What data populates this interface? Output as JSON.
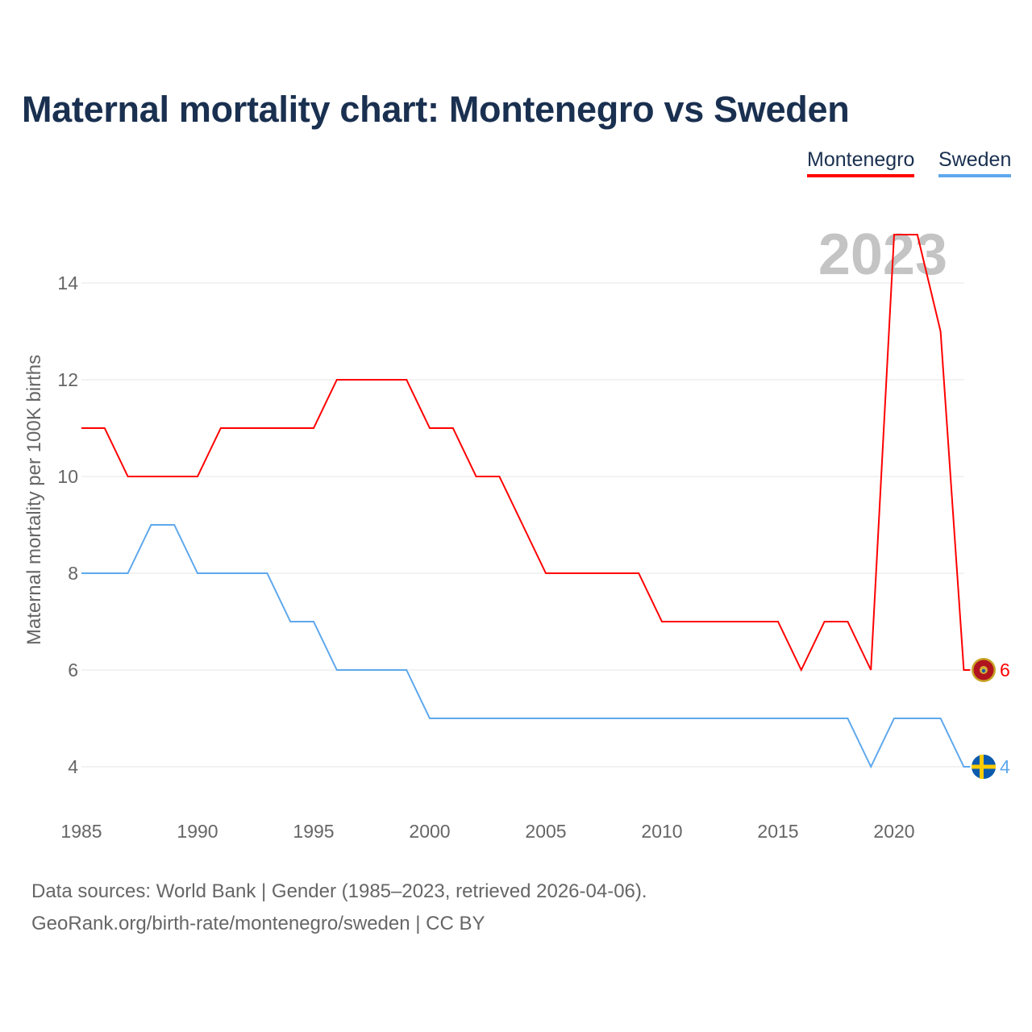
{
  "chart_data": {
    "type": "line",
    "title": "Maternal mortality chart: Montenegro vs Sweden",
    "xlabel": "",
    "ylabel": "Maternal mortality per 100K births",
    "xlim": [
      1985,
      2023
    ],
    "ylim": [
      3,
      15
    ],
    "x_ticks": [
      1985,
      1990,
      1995,
      2000,
      2005,
      2010,
      2015,
      2020
    ],
    "y_ticks": [
      4,
      6,
      8,
      10,
      12,
      14
    ],
    "grid": true,
    "legend_placement": "top-right",
    "year_watermark": "2023",
    "x": [
      1985,
      1986,
      1987,
      1988,
      1989,
      1990,
      1991,
      1992,
      1993,
      1994,
      1995,
      1996,
      1997,
      1998,
      1999,
      2000,
      2001,
      2002,
      2003,
      2004,
      2005,
      2006,
      2007,
      2008,
      2009,
      2010,
      2011,
      2012,
      2013,
      2014,
      2015,
      2016,
      2017,
      2018,
      2019,
      2020,
      2021,
      2022,
      2023
    ],
    "series": [
      {
        "name": "Montenegro",
        "color": "#ff0000",
        "end_label": "6",
        "values": [
          11,
          11,
          10,
          10,
          10,
          10,
          11,
          11,
          11,
          11,
          11,
          12,
          12,
          12,
          12,
          11,
          11,
          10,
          10,
          9,
          8,
          8,
          8,
          8,
          8,
          7,
          7,
          7,
          7,
          7,
          7,
          6,
          7,
          7,
          6,
          15,
          15,
          13,
          6
        ]
      },
      {
        "name": "Sweden",
        "color": "#5ea8ec",
        "end_label": "4",
        "values": [
          8,
          8,
          8,
          9,
          9,
          8,
          8,
          8,
          8,
          7,
          7,
          6,
          6,
          6,
          6,
          5,
          5,
          5,
          5,
          5,
          5,
          5,
          5,
          5,
          5,
          5,
          5,
          5,
          5,
          5,
          5,
          5,
          5,
          5,
          4,
          5,
          5,
          5,
          4
        ]
      }
    ]
  },
  "footer": {
    "line1": "Data sources: World Bank | Gender (1985–2023, retrieved 2026-04-06).",
    "line2": "GeoRank.org/birth-rate/montenegro/sweden | CC BY"
  }
}
